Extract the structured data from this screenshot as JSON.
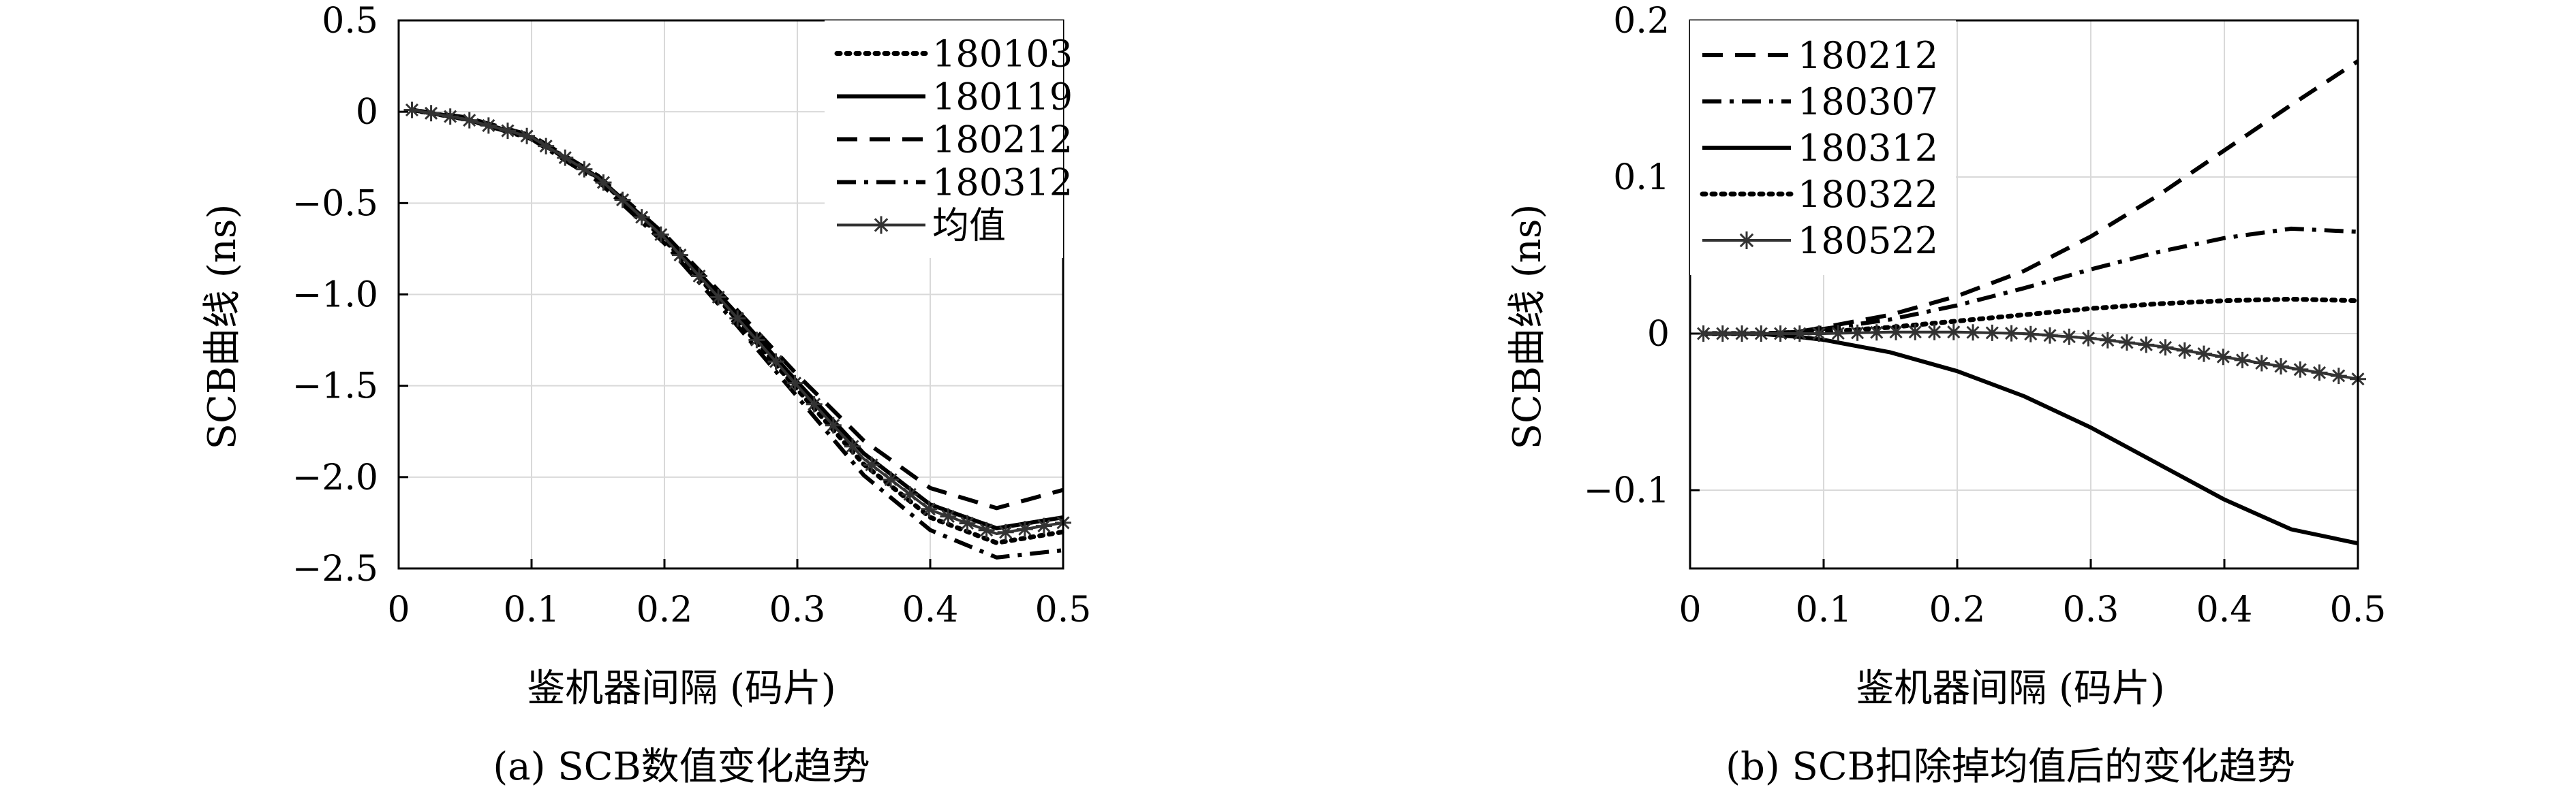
{
  "chart_data": [
    {
      "type": "line",
      "caption": "(a) SCB数值变化趋势",
      "xlabel": "鉴机器间隔 (码片)",
      "ylabel": "SCB曲线 (ns)",
      "xlim": [
        0,
        0.5
      ],
      "ylim": [
        -2.5,
        0.5
      ],
      "x_ticks": [
        0,
        0.1,
        0.2,
        0.3,
        0.4,
        0.5
      ],
      "x_tick_labels": [
        "0",
        "0.1",
        "0.2",
        "0.3",
        "0.4",
        "0.5"
      ],
      "y_ticks": [
        0.5,
        0,
        -0.5,
        -1.0,
        -1.5,
        -2.0,
        -2.5
      ],
      "y_tick_labels": [
        "0.5",
        "0",
        "−0.5",
        "−1.0",
        "−1.5",
        "−2.0",
        "−2.5"
      ],
      "grid": true,
      "legend_position": "top-right",
      "x": [
        0.01,
        0.05,
        0.1,
        0.15,
        0.2,
        0.25,
        0.3,
        0.35,
        0.4,
        0.45,
        0.5
      ],
      "series": [
        {
          "name": "180103",
          "style": "dotted",
          "values": [
            0.01,
            -0.04,
            -0.14,
            -0.36,
            -0.7,
            -1.1,
            -1.52,
            -1.93,
            -2.22,
            -2.36,
            -2.3
          ]
        },
        {
          "name": "180119",
          "style": "solid",
          "values": [
            0.01,
            -0.04,
            -0.14,
            -0.36,
            -0.68,
            -1.07,
            -1.48,
            -1.87,
            -2.15,
            -2.28,
            -2.22
          ]
        },
        {
          "name": "180212",
          "style": "dashed",
          "values": [
            0.01,
            -0.03,
            -0.13,
            -0.35,
            -0.67,
            -1.05,
            -1.44,
            -1.8,
            -2.06,
            -2.17,
            -2.07
          ]
        },
        {
          "name": "180312",
          "style": "dashdot",
          "values": [
            0.01,
            -0.04,
            -0.15,
            -0.38,
            -0.72,
            -1.13,
            -1.56,
            -1.99,
            -2.29,
            -2.44,
            -2.4
          ]
        },
        {
          "name": "均值",
          "style": "star",
          "values": [
            0.01,
            -0.04,
            -0.14,
            -0.36,
            -0.69,
            -1.09,
            -1.5,
            -1.9,
            -2.18,
            -2.31,
            -2.25
          ]
        }
      ]
    },
    {
      "type": "line",
      "caption": "(b) SCB扣除掉均值后的变化趋势",
      "xlabel": "鉴机器间隔 (码片)",
      "ylabel": "SCB曲线 (ns)",
      "xlim": [
        0,
        0.5
      ],
      "ylim": [
        -0.15,
        0.2
      ],
      "x_ticks": [
        0,
        0.1,
        0.2,
        0.3,
        0.4,
        0.5
      ],
      "x_tick_labels": [
        "0",
        "0.1",
        "0.2",
        "0.3",
        "0.4",
        "0.5"
      ],
      "y_ticks": [
        0.2,
        0.1,
        0,
        -0.1
      ],
      "y_tick_labels": [
        "0.2",
        "0.1",
        "0",
        "−0.1"
      ],
      "grid": true,
      "legend_position": "top-left",
      "x": [
        0.01,
        0.05,
        0.08,
        0.1,
        0.15,
        0.2,
        0.25,
        0.3,
        0.35,
        0.4,
        0.45,
        0.5
      ],
      "series": [
        {
          "name": "180212",
          "style": "dashed",
          "values": [
            0,
            0,
            0.001,
            0.004,
            0.012,
            0.024,
            0.04,
            0.062,
            0.088,
            0.117,
            0.146,
            0.174
          ]
        },
        {
          "name": "180307",
          "style": "dashdot",
          "values": [
            0,
            0,
            0.001,
            0.003,
            0.009,
            0.018,
            0.029,
            0.041,
            0.052,
            0.061,
            0.067,
            0.065
          ]
        },
        {
          "name": "180312",
          "style": "solid",
          "values": [
            0,
            0,
            -0.002,
            -0.004,
            -0.012,
            -0.024,
            -0.04,
            -0.06,
            -0.083,
            -0.106,
            -0.125,
            -0.134
          ]
        },
        {
          "name": "180322",
          "style": "dotted",
          "values": [
            0,
            0,
            0,
            0.001,
            0.004,
            0.008,
            0.012,
            0.016,
            0.019,
            0.021,
            0.022,
            0.021
          ]
        },
        {
          "name": "180522",
          "style": "star",
          "values": [
            0,
            0,
            0,
            0,
            0.001,
            0.001,
            0.0,
            -0.003,
            -0.008,
            -0.015,
            -0.022,
            -0.029
          ]
        }
      ]
    }
  ]
}
